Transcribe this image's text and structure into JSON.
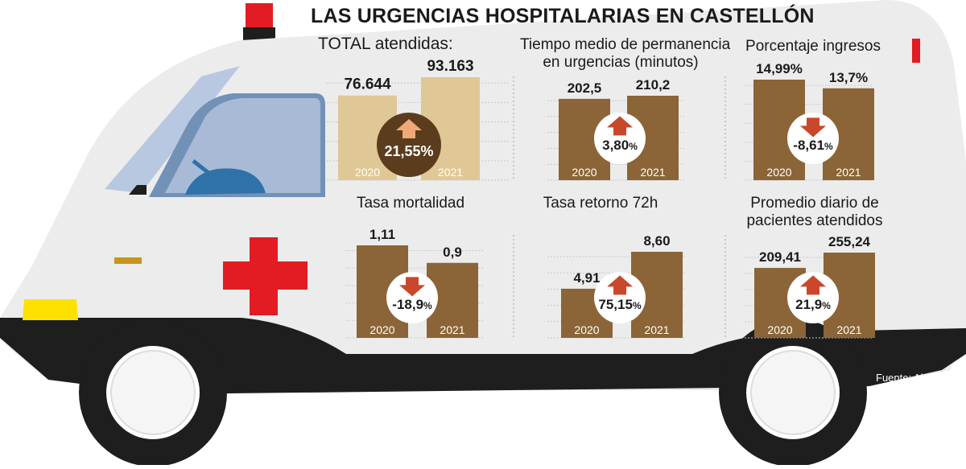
{
  "title": "LAS URGENCIAS HOSPITALARIAS EN  CASTELLÓN",
  "source": "Fuente: Alumbra",
  "colors": {
    "bar_light": "#e0c896",
    "bar_dark": "#8b6537",
    "arrow_up_light": "#f0a878",
    "arrow_dark": "#c9472a",
    "cross": "#e31b23",
    "van_body": "#ececec",
    "window": "#b8c8e0",
    "tire": "#1e1e1e"
  },
  "icons": {
    "up": "arrow-up-icon",
    "down": "arrow-down-icon"
  },
  "chart_data": [
    {
      "id": "total",
      "type": "bar",
      "title": "TOTAL atendidas:",
      "categories": [
        "2020",
        "2021"
      ],
      "values": [
        76644,
        93163
      ],
      "value_labels": [
        "76.644",
        "93.163"
      ],
      "change_label": "21,55%",
      "change_main": "21,55%",
      "change_pct": "",
      "direction": "up",
      "style": "light"
    },
    {
      "id": "permanencia",
      "type": "bar",
      "title": "Tiempo medio de permanencia\nen urgencias (minutos)",
      "categories": [
        "2020",
        "2021"
      ],
      "values": [
        202.5,
        210.2
      ],
      "value_labels": [
        "202,5",
        "210,2"
      ],
      "change_label": "3,80%",
      "change_main": "3,80",
      "change_pct": "%",
      "direction": "up",
      "style": "dark"
    },
    {
      "id": "ingresos",
      "type": "bar",
      "title": "Porcentaje ingresos",
      "categories": [
        "2020",
        "2021"
      ],
      "values": [
        14.99,
        13.7
      ],
      "value_labels": [
        "14,99%",
        "13,7%"
      ],
      "change_label": "-8,61%",
      "change_main": "-8,61",
      "change_pct": "%",
      "direction": "down",
      "style": "dark"
    },
    {
      "id": "mortalidad",
      "type": "bar",
      "title": "Tasa mortalidad",
      "categories": [
        "2020",
        "2021"
      ],
      "values": [
        1.11,
        0.9
      ],
      "value_labels": [
        "1,11",
        "0,9"
      ],
      "change_label": "-18,9%",
      "change_main": "-18,9",
      "change_pct": "%",
      "direction": "down",
      "style": "dark"
    },
    {
      "id": "retorno",
      "type": "bar",
      "title": "Tasa retorno 72h",
      "categories": [
        "2020",
        "2021"
      ],
      "values": [
        4.91,
        8.6
      ],
      "value_labels": [
        "4,91",
        "8,60"
      ],
      "change_label": "75,15%",
      "change_main": "75,15",
      "change_pct": "%",
      "direction": "up",
      "style": "dark"
    },
    {
      "id": "promedio",
      "type": "bar",
      "title": "Promedio diario de\npacientes atendidos",
      "categories": [
        "2020",
        "2021"
      ],
      "values": [
        209.41,
        255.24
      ],
      "value_labels": [
        "209,41",
        "255,24"
      ],
      "change_label": "21,9%",
      "change_main": "21,9",
      "change_pct": "%",
      "direction": "up",
      "style": "dark"
    }
  ]
}
